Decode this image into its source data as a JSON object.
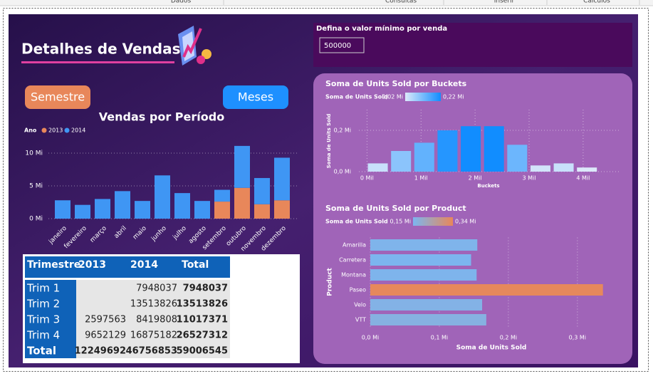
{
  "ribbon": {
    "tabs": [
      "Dados",
      "Consultas",
      "Inserir",
      "Cálculos"
    ]
  },
  "header": {
    "title": "Detalhes de Vendas"
  },
  "buttons": [
    "Semestre",
    "Meses"
  ],
  "slicer": {
    "label": "Defina o valor mínimo por venda",
    "value": 500000
  },
  "table": {
    "columns": [
      "Trimestre",
      "2013",
      "2014",
      "Total"
    ],
    "rows": [
      [
        "Trim 1",
        null,
        7948037,
        7948037
      ],
      [
        "Trim 2",
        null,
        13513826,
        13513826
      ],
      [
        "Trim 3",
        2597563,
        8419808,
        11017371
      ],
      [
        "Trim 4",
        9652129,
        16875182,
        26527312
      ]
    ],
    "total": [
      "Total",
      12249692,
      46756853,
      59006545
    ]
  },
  "chart_data": [
    {
      "type": "bar",
      "stacked": true,
      "title": "Vendas por Período",
      "legend_title": "Ano",
      "categories": [
        "janeiro",
        "fevereiro",
        "março",
        "abril",
        "maio",
        "junho",
        "julho",
        "agosto",
        "setembro",
        "outubro",
        "novembro",
        "dezembro"
      ],
      "series": [
        {
          "name": "2013",
          "color": "#e8875a",
          "values": [
            null,
            null,
            null,
            null,
            null,
            null,
            null,
            null,
            2.6,
            4.7,
            2.2,
            2.8
          ]
        },
        {
          "name": "2014",
          "color": "#3f96f4",
          "values": [
            2.8,
            2.1,
            3.0,
            4.2,
            2.7,
            6.6,
            3.9,
            2.7,
            1.8,
            6.4,
            4.0,
            6.5
          ]
        }
      ],
      "ylim": [
        0,
        12
      ],
      "yticks": [
        {
          "value": 0,
          "label": "0 Mi"
        },
        {
          "value": 5,
          "label": "5 Mi"
        },
        {
          "value": 10,
          "label": "10 Mi"
        }
      ],
      "grid": true
    },
    {
      "type": "bar",
      "title": "Soma de Units Sold por Buckets",
      "xlabel": "Buckets",
      "ylabel": "Soma de Units Sold",
      "x": [
        0.2,
        0.63,
        1.06,
        1.49,
        1.92,
        2.35,
        2.78,
        3.21,
        3.64,
        4.07
      ],
      "values": [
        0.04,
        0.1,
        0.14,
        0.2,
        0.22,
        0.22,
        0.13,
        0.03,
        0.04,
        0.02
      ],
      "xlim": [
        -0.15,
        4.7
      ],
      "xticks": [
        {
          "value": 0,
          "label": "0 Mil"
        },
        {
          "value": 1,
          "label": "1 Mil"
        },
        {
          "value": 2,
          "label": "2 Mil"
        },
        {
          "value": 3,
          "label": "3 Mil"
        },
        {
          "value": 4,
          "label": "4 Mil"
        }
      ],
      "ylim": [
        0,
        0.3
      ],
      "yticks": [
        {
          "value": 0,
          "label": "0,0 Mi"
        },
        {
          "value": 0.2,
          "label": "0,2 Mi"
        }
      ],
      "color_scale": {
        "title": "Soma de Units Sold",
        "min": {
          "value": 0.02,
          "label": "0,02 Mi"
        },
        "max": {
          "value": 0.22,
          "label": "0,22 Mi"
        },
        "colors": [
          "#dce9fa",
          "#118dff"
        ]
      },
      "grid": true
    },
    {
      "type": "bar",
      "orientation": "horizontal",
      "title": "Soma de Units Sold por Product",
      "xlabel": "Soma de Units Sold",
      "ylabel": "Product",
      "categories": [
        "Amarilla",
        "Carretera",
        "Montana",
        "Paseo",
        "Velo",
        "VTT"
      ],
      "values": [
        0.155,
        0.146,
        0.154,
        0.337,
        0.162,
        0.168
      ],
      "xlim": [
        0,
        0.36
      ],
      "xticks": [
        {
          "value": 0,
          "label": "0,0 Mi"
        },
        {
          "value": 0.1,
          "label": "0,1 Mi"
        },
        {
          "value": 0.2,
          "label": "0,2 Mi"
        },
        {
          "value": 0.3,
          "label": "0,3 Mi"
        }
      ],
      "color_scale": {
        "title": "Soma de Units Sold",
        "min": {
          "value": 0.15,
          "label": "0,15 Mi"
        },
        "max": {
          "value": 0.34,
          "label": "0,34 Mi"
        },
        "colors": [
          "#7cb5ef",
          "#e8875a"
        ]
      },
      "grid": true
    }
  ]
}
